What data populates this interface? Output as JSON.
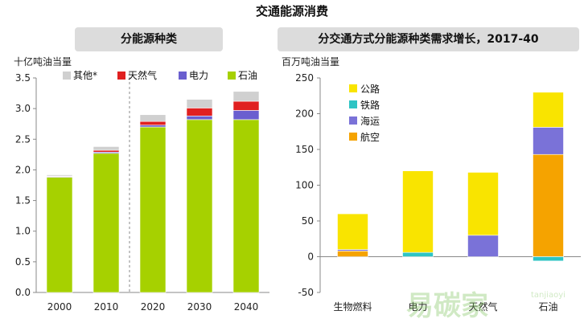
{
  "title": "交通能源消费",
  "chart_data": [
    {
      "type": "bar",
      "stacked": true,
      "title": "分能源种类",
      "ylabel": "十亿吨油当量",
      "categories": [
        "2000",
        "2010",
        "2020",
        "2030",
        "2040"
      ],
      "ylim": [
        0,
        3.5
      ],
      "yticks": [
        "0.0",
        "0.5",
        "1.0",
        "1.5",
        "2.0",
        "2.5",
        "3.0",
        "3.5"
      ],
      "series": [
        {
          "name": "石油",
          "color": "#a6d100",
          "values": [
            1.88,
            2.27,
            2.7,
            2.82,
            2.82
          ]
        },
        {
          "name": "电力",
          "color": "#6a5fcf",
          "values": [
            0.01,
            0.02,
            0.03,
            0.06,
            0.15
          ]
        },
        {
          "name": "天然气",
          "color": "#e02020",
          "values": [
            0.01,
            0.03,
            0.06,
            0.13,
            0.15
          ]
        },
        {
          "name": "其他*",
          "color": "#d0d0d0",
          "values": [
            0.02,
            0.06,
            0.11,
            0.14,
            0.16
          ]
        }
      ],
      "legend_order": [
        "其他*",
        "天然气",
        "电力",
        "石油"
      ],
      "legend": "top",
      "divider_after_index": 1,
      "grid": false
    },
    {
      "type": "bar",
      "stacked": true,
      "title": "分交通方式分能源种类需求增长，2017-40",
      "ylabel": "百万吨油当量",
      "categories": [
        "生物燃料",
        "电力",
        "天然气",
        "石油"
      ],
      "ylim": [
        -50,
        250
      ],
      "yticks": [
        "250",
        "200",
        "150",
        "100",
        "50",
        "0",
        "-50"
      ],
      "series": [
        {
          "name": "航空",
          "color": "#f5a300",
          "values": [
            8,
            0,
            0,
            143
          ]
        },
        {
          "name": "海运",
          "color": "#7a72d8",
          "values": [
            2,
            0,
            30,
            38
          ]
        },
        {
          "name": "铁路",
          "color": "#2ec4c4",
          "values": [
            0,
            6,
            0,
            -6
          ]
        },
        {
          "name": "公路",
          "color": "#f9e400",
          "values": [
            50,
            114,
            88,
            49
          ]
        }
      ],
      "legend_order": [
        "公路",
        "铁路",
        "海运",
        "航空"
      ],
      "legend": "top-left",
      "grid": false
    }
  ],
  "watermark": {
    "text": "易碳家",
    "subtext": "tanjiaoyi"
  }
}
